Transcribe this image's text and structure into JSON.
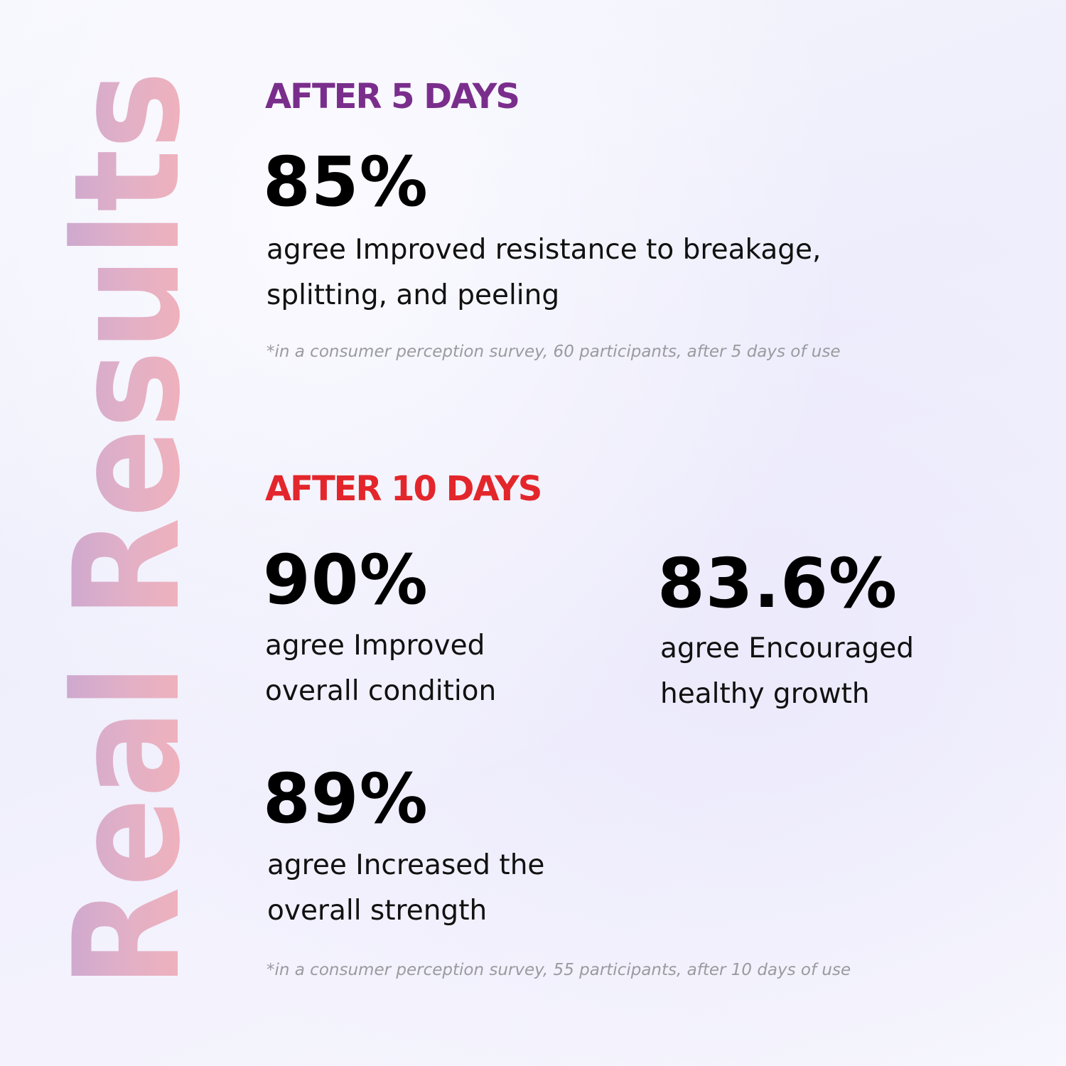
{
  "side_title": "Real Results",
  "colors": {
    "purple": "#7a2e8c",
    "red": "#e3262b",
    "gradient_top": "#c9a3d2",
    "gradient_bottom": "#f6b3b8"
  },
  "section1": {
    "heading": "AFTER 5 DAYS",
    "stat": {
      "value": "85%",
      "line1": "agree Improved resistance to breakage,",
      "line2": "splitting, and peeling"
    },
    "footnote": "*in a consumer perception survey, 60 participants, after 5 days of use"
  },
  "section2": {
    "heading": "AFTER 10 DAYS",
    "stats": [
      {
        "value": "90%",
        "line1": "agree Improved",
        "line2": "overall condition"
      },
      {
        "value": "83.6%",
        "line1": "agree Encouraged",
        "line2": "healthy growth"
      },
      {
        "value": "89%",
        "line1": "agree Increased the",
        "line2": "overall strength"
      }
    ],
    "footnote": "*in a consumer perception survey, 55 participants, after 10 days of use"
  }
}
